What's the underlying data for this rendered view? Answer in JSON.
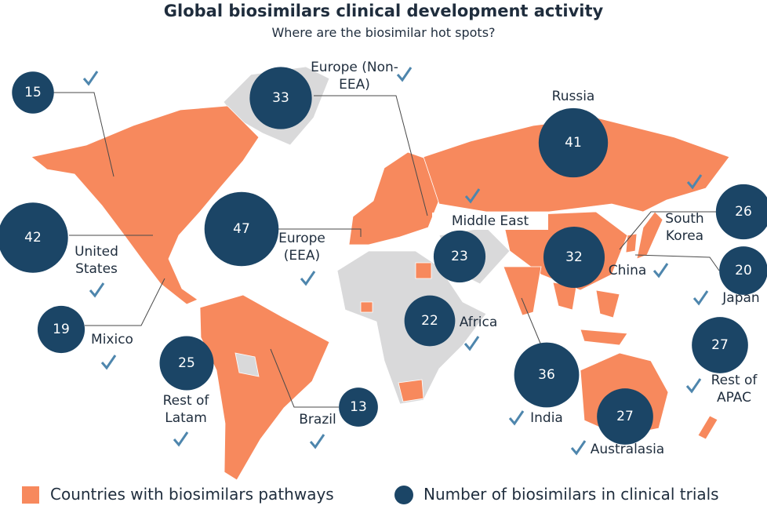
{
  "header": {
    "title": "Global biosimilars clinical development activity",
    "subtitle": "Where are the biosimilar hot spots?"
  },
  "regions": [
    {
      "value": 15
    },
    {
      "label": "Europe (Non-EEA)",
      "value": 33
    },
    {
      "label": "Russia",
      "value": 41
    },
    {
      "label": "South Korea",
      "value": 26
    },
    {
      "label": "Middle East",
      "value": 23
    },
    {
      "label": "Europe (EEA)",
      "value": 47
    },
    {
      "label": "United States",
      "value": 42
    },
    {
      "label": "China",
      "value": 32
    },
    {
      "label": "Japan",
      "value": 20
    },
    {
      "label": "Mixico",
      "value": 19
    },
    {
      "label": "Africa",
      "value": 22
    },
    {
      "label": "Rest of Latam",
      "value": 25
    },
    {
      "label": "Brazil",
      "value": 13
    },
    {
      "label": "India",
      "value": 36
    },
    {
      "label": "Rest of APAC",
      "value": 27
    },
    {
      "label": "Australasia",
      "value": 27
    }
  ],
  "legend": {
    "pathways": "Countries with biosimilars pathways",
    "trials": "Number of biosimilars in clinical trials"
  }
}
